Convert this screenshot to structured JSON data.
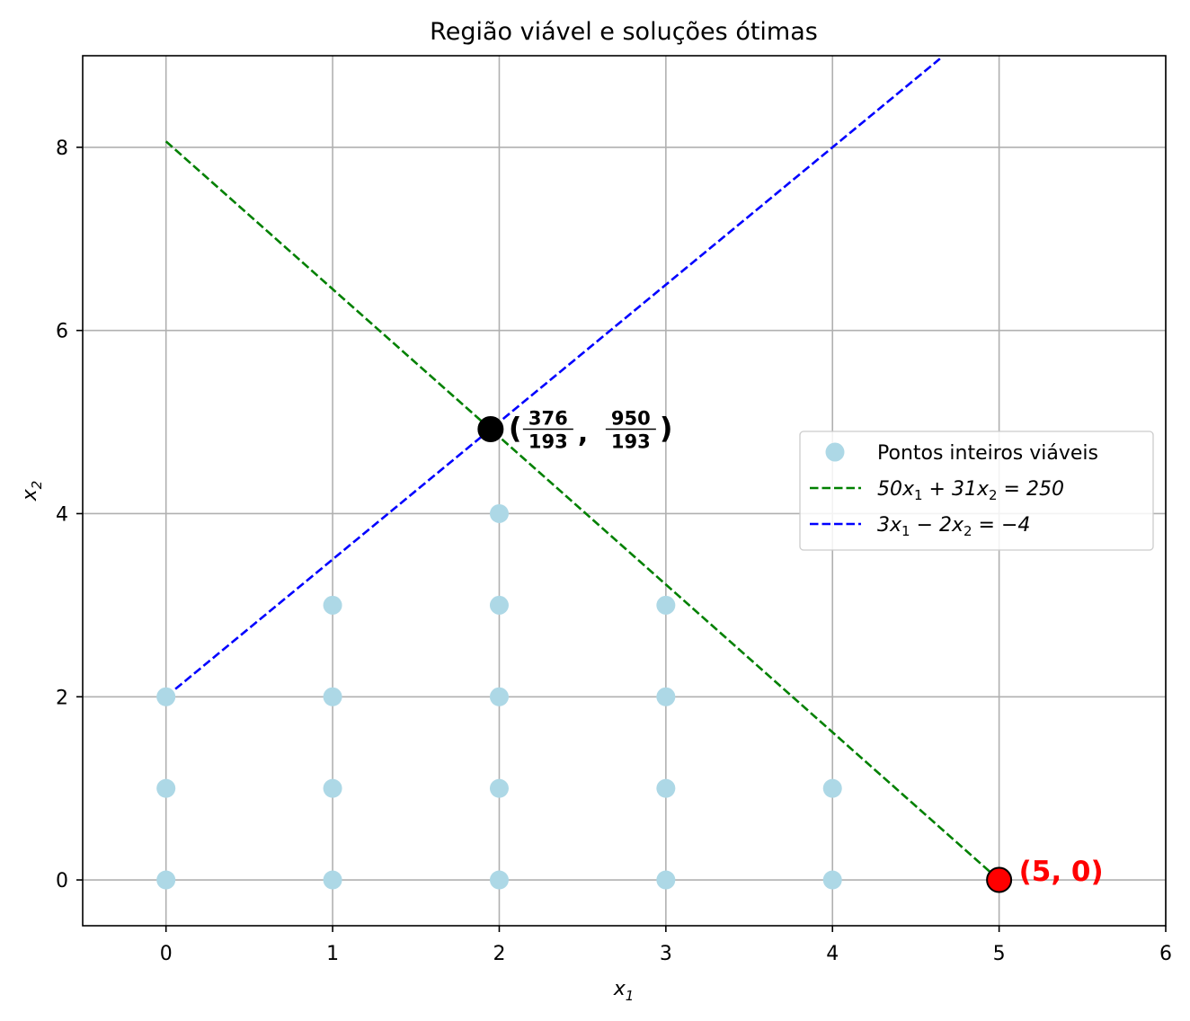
{
  "chart_data": {
    "type": "scatter",
    "title": "Região viável e soluções ótimas",
    "xlabel": "x",
    "xlabel_sub": "1",
    "ylabel": "x",
    "ylabel_sub": "2",
    "xlim": [
      -0.5,
      6
    ],
    "ylim": [
      -0.5,
      9
    ],
    "xticks": [
      0,
      1,
      2,
      3,
      4,
      5,
      6
    ],
    "yticks": [
      0,
      2,
      4,
      6,
      8
    ],
    "grid": true,
    "legend_position": "center-right",
    "series": [
      {
        "name": "Pontos inteiros viáveis",
        "kind": "scatter",
        "color": "#add8e6",
        "points": [
          [
            0,
            0
          ],
          [
            0,
            1
          ],
          [
            0,
            2
          ],
          [
            1,
            0
          ],
          [
            1,
            1
          ],
          [
            1,
            2
          ],
          [
            1,
            3
          ],
          [
            2,
            0
          ],
          [
            2,
            1
          ],
          [
            2,
            2
          ],
          [
            2,
            3
          ],
          [
            2,
            4
          ],
          [
            3,
            0
          ],
          [
            3,
            1
          ],
          [
            3,
            2
          ],
          [
            3,
            3
          ],
          [
            4,
            0
          ],
          [
            4,
            1
          ]
        ]
      },
      {
        "name_parts": [
          "50x",
          "1",
          " + 31x",
          "2",
          " = 250"
        ],
        "kind": "line",
        "color": "#008000",
        "dash": true,
        "x": [
          0,
          5
        ],
        "y": [
          8.0645,
          0
        ]
      },
      {
        "name_parts": [
          "3x",
          "1",
          " − 2x",
          "2",
          " = −4"
        ],
        "kind": "line",
        "color": "#0000ff",
        "dash": true,
        "x": [
          0,
          4.6452
        ],
        "y": [
          2,
          8.9677
        ]
      }
    ],
    "annotations": [
      {
        "x": 1.9482,
        "y": 4.9223,
        "color": "#000000",
        "label_type": "fraction",
        "num1": "376",
        "den1": "193",
        "num2": "950",
        "den2": "193"
      },
      {
        "x": 5,
        "y": 0,
        "color": "#ff0000",
        "label_type": "text",
        "text": "(5,  0)"
      }
    ]
  }
}
